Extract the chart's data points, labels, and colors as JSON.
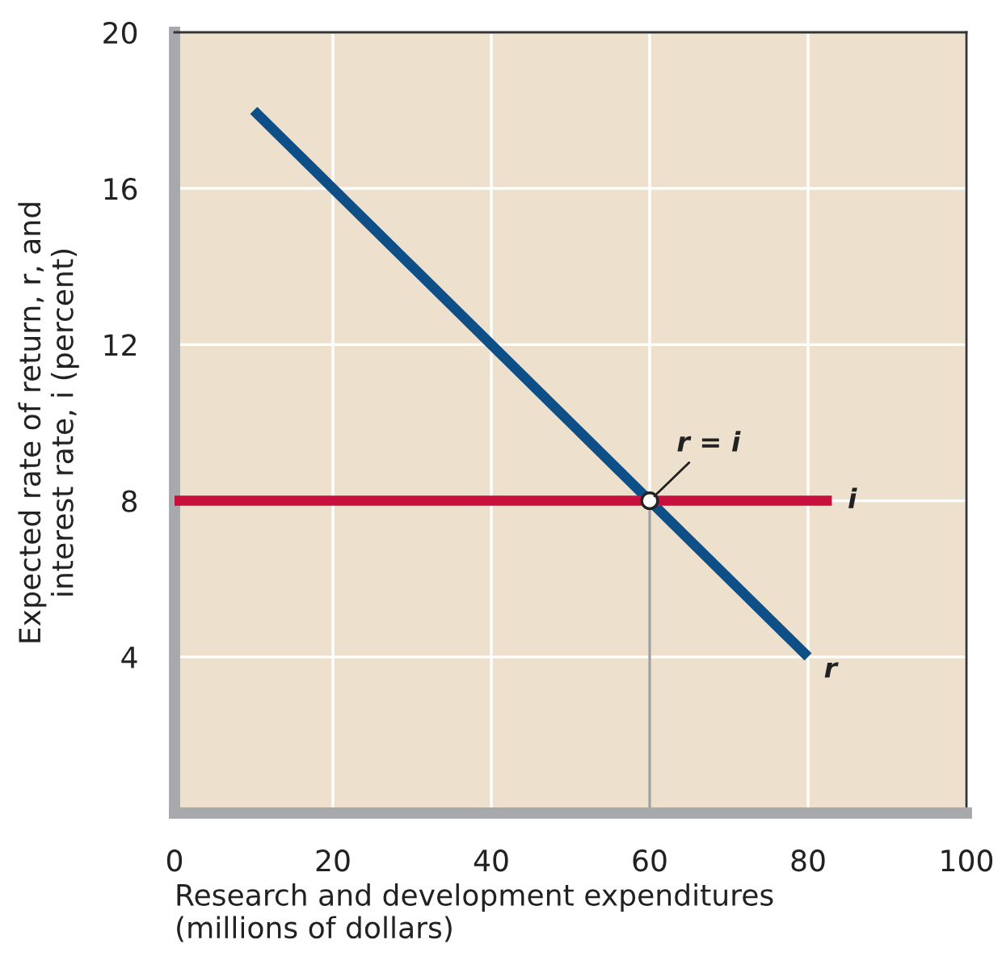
{
  "chart_data": {
    "type": "line",
    "xlabel": "Research and development expenditures\n(millions of dollars)",
    "ylabel": "Expected rate of return, r, and\ninterest rate, i (percent)",
    "series": [
      {
        "name": "r",
        "color": "#0d4f86",
        "x": [
          10,
          20,
          30,
          60,
          80
        ],
        "values": [
          18,
          16,
          14,
          8,
          4
        ]
      },
      {
        "name": "i",
        "color": "#c8103e",
        "x": [
          0,
          83
        ],
        "values": [
          8,
          8
        ]
      },
      {
        "color": "#a0a0a0",
        "x": [
          60,
          60
        ],
        "values": [
          0,
          8
        ]
      },
      {
        "type": "scatter",
        "color": "#ffffff",
        "x": [
          60
        ],
        "values": [
          8
        ]
      }
    ],
    "annotations": [
      {
        "text": "r = i",
        "x": 60,
        "y": 8
      }
    ],
    "xlim": [
      0,
      100
    ],
    "ylim": [
      0,
      20
    ],
    "xticks": [
      0,
      20,
      40,
      60,
      80,
      100
    ],
    "yticks": [
      {
        "value": 0,
        "label": null
      },
      4,
      8,
      12,
      16,
      20
    ],
    "grid": true,
    "legend": false
  }
}
